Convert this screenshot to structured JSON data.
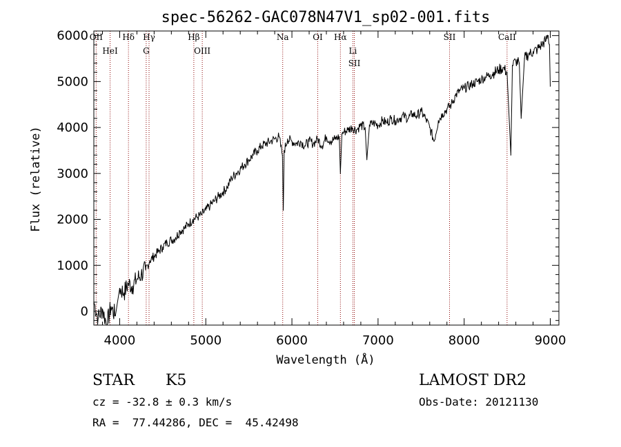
{
  "chart_data": {
    "type": "line",
    "title": "spec-56262-GAC078N47V1_sp02-001.fits",
    "xlabel": "Wavelength (Å)",
    "ylabel": "Flux (relative)",
    "xlim": [
      3700,
      9100
    ],
    "ylim": [
      -300,
      6100
    ],
    "xticks": [
      4000,
      5000,
      6000,
      7000,
      8000,
      9000
    ],
    "xtick_labels": [
      "4000",
      "5000",
      "6000",
      "7000",
      "8000",
      "9000"
    ],
    "yticks": [
      0,
      1000,
      2000,
      3000,
      4000,
      5000,
      6000
    ],
    "ytick_labels": [
      "0",
      "1000",
      "2000",
      "3000",
      "4000",
      "5000",
      "6000"
    ],
    "grid": false,
    "series": [
      {
        "color": "#000000",
        "x": [
          3700,
          3750,
          3800,
          3850,
          3900,
          3950,
          4000,
          4050,
          4100,
          4150,
          4200,
          4250,
          4300,
          4350,
          4400,
          4450,
          4500,
          4550,
          4600,
          4650,
          4700,
          4750,
          4800,
          4850,
          4900,
          4950,
          5000,
          5050,
          5100,
          5150,
          5200,
          5250,
          5300,
          5350,
          5400,
          5450,
          5500,
          5550,
          5600,
          5650,
          5700,
          5750,
          5800,
          5850,
          5890,
          5900,
          5910,
          5950,
          6000,
          6050,
          6100,
          6150,
          6200,
          6250,
          6300,
          6350,
          6400,
          6450,
          6500,
          6550,
          6563,
          6580,
          6600,
          6650,
          6700,
          6750,
          6800,
          6850,
          6870,
          6900,
          6950,
          7000,
          7050,
          7100,
          7150,
          7200,
          7250,
          7300,
          7350,
          7400,
          7450,
          7500,
          7550,
          7600,
          7650,
          7700,
          7750,
          7800,
          7850,
          7900,
          7950,
          8000,
          8050,
          8100,
          8150,
          8200,
          8250,
          8300,
          8350,
          8400,
          8450,
          8498,
          8542,
          8560,
          8600,
          8640,
          8662,
          8700,
          8750,
          8800,
          8850,
          8900,
          8950,
          8975,
          8990,
          9000
        ],
        "y": [
          200,
          -150,
          50,
          -300,
          100,
          -100,
          500,
          400,
          600,
          550,
          700,
          800,
          900,
          1100,
          1200,
          1300,
          1400,
          1500,
          1550,
          1600,
          1750,
          1800,
          1900,
          2000,
          2050,
          2100,
          2200,
          2300,
          2400,
          2500,
          2600,
          2700,
          2900,
          3000,
          3100,
          3200,
          3300,
          3400,
          3500,
          3600,
          3650,
          3700,
          3750,
          3800,
          3400,
          2200,
          3500,
          3750,
          3700,
          3650,
          3700,
          3600,
          3700,
          3650,
          3750,
          3600,
          3800,
          3700,
          3750,
          3800,
          3000,
          3850,
          3900,
          3950,
          4000,
          3950,
          4050,
          4000,
          3300,
          4050,
          4100,
          4050,
          4150,
          4100,
          4200,
          4150,
          4200,
          4250,
          4200,
          4300,
          4250,
          4350,
          4200,
          4000,
          3700,
          4150,
          4300,
          4400,
          4500,
          4700,
          4800,
          4850,
          4900,
          4950,
          5000,
          5050,
          5100,
          5150,
          5200,
          5250,
          5300,
          5200,
          3400,
          5350,
          5450,
          5400,
          4200,
          5500,
          5600,
          5650,
          5700,
          5800,
          5900,
          6000,
          5800,
          4900
        ]
      }
    ],
    "line_markers": [
      {
        "label": "OII",
        "x": 3727
      },
      {
        "label": "HeI",
        "x": 3889
      },
      {
        "label": "Hδ",
        "x": 4102
      },
      {
        "label": "Hγ",
        "x": 4341
      },
      {
        "label": "G",
        "x": 4308
      },
      {
        "label": "Hβ",
        "x": 4861
      },
      {
        "label": "OIII",
        "x": 4959
      },
      {
        "label": "Na",
        "x": 5893
      },
      {
        "label": "OI",
        "x": 6300
      },
      {
        "label": "Hα",
        "x": 6563
      },
      {
        "label": "Li",
        "x": 6708
      },
      {
        "label": "SII",
        "x": 6725
      },
      {
        "label": "SII",
        "x": 7830
      },
      {
        "label": "CaII",
        "x": 8498
      }
    ]
  },
  "info": {
    "object_class": "STAR",
    "subclass": "K5",
    "survey": "LAMOST DR2",
    "cz": "cz = -32.8 ± 0.3 km/s",
    "obs_date": "Obs-Date: 20121130",
    "coords": "RA =  77.44286, DEC =  45.42498"
  },
  "colors": {
    "spectrum": "#000000",
    "line_marker": "#8b0000"
  }
}
